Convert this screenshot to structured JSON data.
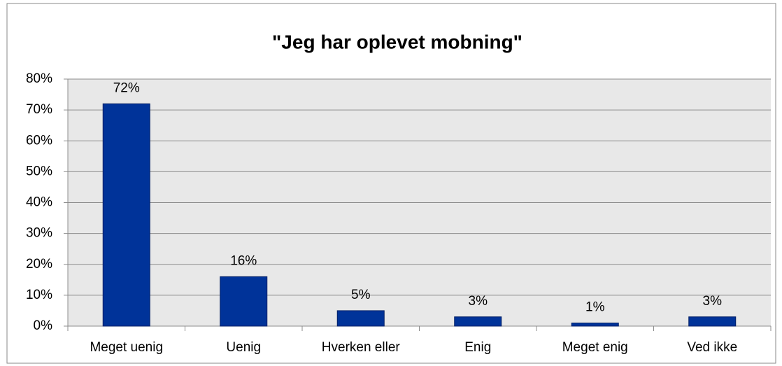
{
  "chart_data": {
    "type": "bar",
    "title": "\"Jeg har oplevet mobning\"",
    "categories": [
      "Meget uenig",
      "Uenig",
      "Hverken eller",
      "Enig",
      "Meget enig",
      "Ved ikke"
    ],
    "values": [
      72,
      16,
      5,
      3,
      1,
      3
    ],
    "value_labels": [
      "72%",
      "16%",
      "5%",
      "3%",
      "1%",
      "3%"
    ],
    "color": "#003399",
    "ylim": [
      0,
      80
    ],
    "yticks": [
      {
        "value": 0,
        "label": "0%"
      },
      {
        "value": 10,
        "label": "10%"
      },
      {
        "value": 20,
        "label": "20%"
      },
      {
        "value": 30,
        "label": "30%"
      },
      {
        "value": 40,
        "label": "40%"
      },
      {
        "value": 50,
        "label": "50%"
      },
      {
        "value": 60,
        "label": "60%"
      },
      {
        "value": 70,
        "label": "70%"
      },
      {
        "value": 80,
        "label": "80%"
      }
    ],
    "grid": true
  }
}
